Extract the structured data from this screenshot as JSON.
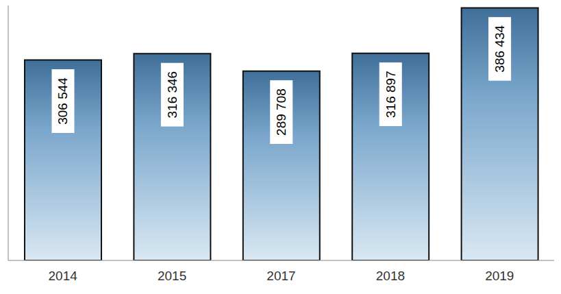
{
  "chart_data": {
    "type": "bar",
    "categories": [
      "2014",
      "2015",
      "2017",
      "2018",
      "2019"
    ],
    "values": [
      306544,
      316346,
      289708,
      316897,
      386434
    ],
    "value_labels": [
      "306 544",
      "316 346",
      "289 708",
      "316 897",
      "386 434"
    ],
    "color": "#7ba7cc",
    "ylim": [
      0,
      390000
    ],
    "yticks": [],
    "grid": false,
    "data_labels": true,
    "tick_labels": "x"
  }
}
